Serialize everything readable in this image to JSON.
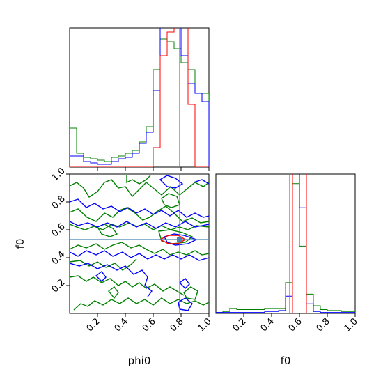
{
  "chart_data": {
    "type": "corner",
    "parameters": [
      "phi0",
      "f0"
    ],
    "xlabel_left": "phi0",
    "xlabel_right": "f0",
    "ylabel_left": "f0",
    "truth": {
      "phi0": 0.79,
      "f0": 0.53
    },
    "ticks": {
      "phi0": [
        "0.2",
        "0.4",
        "0.6",
        "0.8",
        "1.0"
      ],
      "f0": [
        "0.2",
        "0.4",
        "0.6",
        "0.8",
        "1.0"
      ]
    },
    "tick_values": [
      0.2,
      0.4,
      0.6,
      0.8,
      1.0
    ],
    "ylabel_ticks": [
      "0.2",
      "0.4",
      "0.6",
      "0.8",
      "1.0"
    ],
    "range": [
      0,
      1
    ],
    "series_colors": {
      "red": "#ff0000",
      "blue": "#0000ff",
      "green": "#008000",
      "truth": "#4682b4"
    },
    "phi0_hist": {
      "bins": 20,
      "red": [
        0,
        0,
        0,
        0,
        0,
        0,
        0,
        0,
        0,
        0,
        0,
        0,
        0.14,
        0.8,
        0.97,
        1.3,
        1.1,
        0.45,
        0,
        0
      ],
      "blue": [
        0.08,
        0.08,
        0.04,
        0.03,
        0.02,
        0.02,
        0.04,
        0.06,
        0.07,
        0.1,
        0.17,
        0.25,
        0.55,
        1.3,
        1.1,
        1.4,
        0.8,
        0.6,
        0.53,
        0.47
      ],
      "green": [
        0.28,
        0.1,
        0.07,
        0.06,
        0.05,
        0.04,
        0.07,
        0.08,
        0.1,
        0.12,
        0.18,
        0.29,
        0.7,
        0.92,
        0.9,
        0.85,
        0.75,
        0.7,
        0.53,
        0.53
      ]
    },
    "f0_hist": {
      "bins": 20,
      "red": [
        0,
        0,
        0,
        0,
        0,
        0,
        0,
        0,
        0,
        0,
        0.0,
        2.2,
        1.6,
        0.0,
        0,
        0,
        0,
        0,
        0,
        0
      ],
      "blue": [
        0.01,
        0.01,
        0.01,
        0.01,
        0.01,
        0.01,
        0.01,
        0.02,
        0.02,
        0.03,
        0.18,
        2.2,
        1.1,
        0.1,
        0.02,
        0.01,
        0.01,
        0.01,
        0.01,
        0.01
      ],
      "green": [
        0.01,
        0.02,
        0.05,
        0.04,
        0.04,
        0.04,
        0.04,
        0.05,
        0.05,
        0.05,
        0.32,
        1.35,
        0.7,
        0.2,
        0.08,
        0.04,
        0.03,
        0.03,
        0.02,
        0.02
      ]
    }
  }
}
